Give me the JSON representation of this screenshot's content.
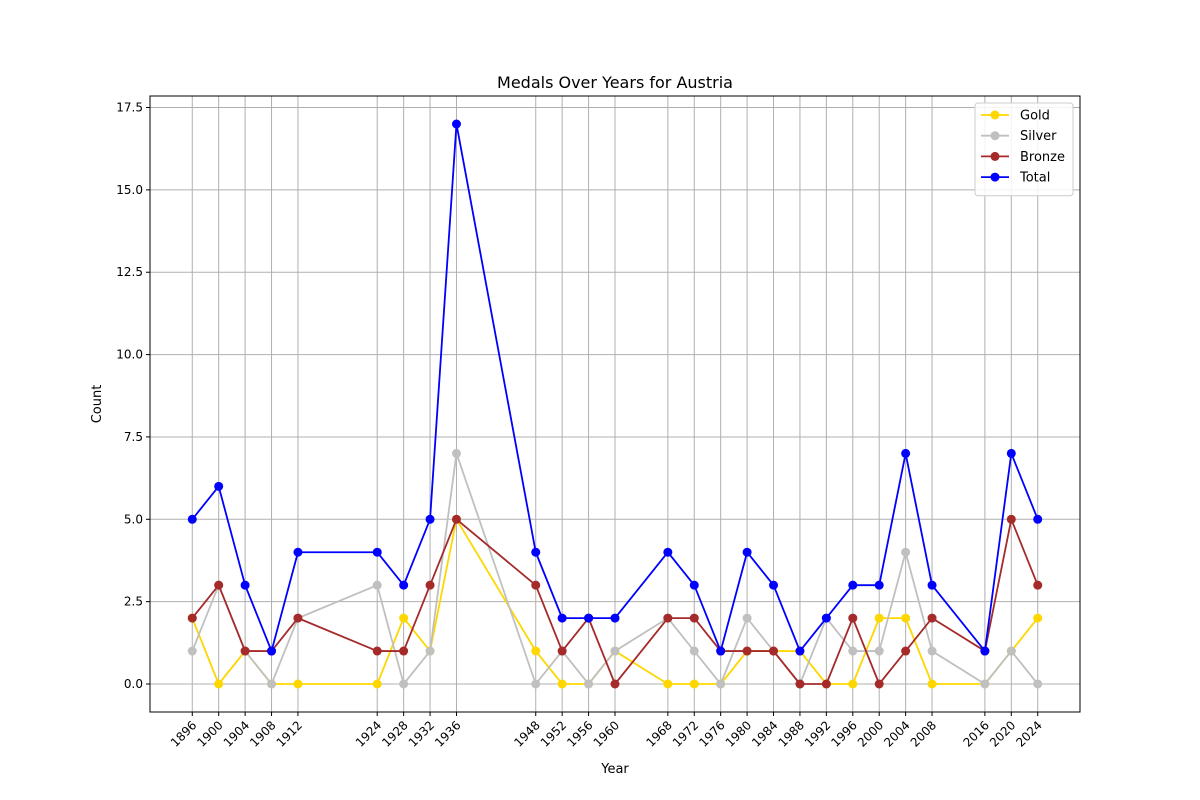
{
  "chart_data": {
    "type": "line",
    "title": "Medals Over Years for Austria",
    "xlabel": "Year",
    "ylabel": "Count",
    "x": [
      1896,
      1900,
      1904,
      1908,
      1912,
      1924,
      1928,
      1932,
      1936,
      1948,
      1952,
      1956,
      1960,
      1968,
      1972,
      1976,
      1980,
      1984,
      1988,
      1992,
      1996,
      2000,
      2004,
      2008,
      2016,
      2020,
      2024
    ],
    "yticks": [
      0.0,
      2.5,
      5.0,
      7.5,
      10.0,
      12.5,
      15.0,
      17.5
    ],
    "ytick_labels": [
      "0.0",
      "2.5",
      "5.0",
      "7.5",
      "10.0",
      "12.5",
      "15.0",
      "17.5"
    ],
    "ylim": [
      -0.85,
      17.85
    ],
    "xlim": [
      1889.6,
      2030.4
    ],
    "grid": true,
    "legend_position": "top-right",
    "series": [
      {
        "name": "Gold",
        "color": "#FFD700",
        "values": [
          2,
          0,
          1,
          0,
          0,
          0,
          2,
          1,
          5,
          1,
          0,
          0,
          1,
          0,
          0,
          0,
          1,
          1,
          1,
          0,
          0,
          2,
          2,
          0,
          0,
          1,
          2
        ]
      },
      {
        "name": "Silver",
        "color": "#C0C0C0",
        "values": [
          1,
          3,
          1,
          0,
          2,
          3,
          0,
          1,
          7,
          0,
          1,
          0,
          1,
          2,
          1,
          0,
          2,
          1,
          0,
          2,
          1,
          1,
          4,
          1,
          0,
          1,
          0
        ]
      },
      {
        "name": "Bronze",
        "color": "#A52A2A",
        "values": [
          2,
          3,
          1,
          1,
          2,
          1,
          1,
          3,
          5,
          3,
          1,
          2,
          0,
          2,
          2,
          1,
          1,
          1,
          0,
          0,
          2,
          0,
          1,
          2,
          1,
          5,
          3
        ]
      },
      {
        "name": "Total",
        "color": "#0000FF",
        "values": [
          5,
          6,
          3,
          1,
          4,
          4,
          3,
          5,
          17,
          4,
          2,
          2,
          2,
          4,
          3,
          1,
          4,
          3,
          1,
          2,
          3,
          3,
          7,
          3,
          1,
          7,
          5
        ]
      }
    ]
  }
}
